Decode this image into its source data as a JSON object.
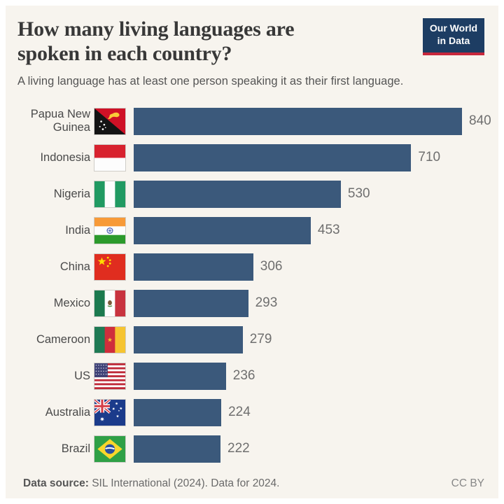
{
  "header": {
    "title_lines": [
      "How many living languages are",
      "spoken in each country?"
    ]
  },
  "logo": {
    "line1": "Our World",
    "line2": "in Data",
    "bg": "#1d3d63",
    "accent": "#c7273c"
  },
  "chart_data": {
    "type": "bar",
    "orientation": "horizontal",
    "title": "How many living languages are spoken in each country?",
    "subtitle": "A living language has at least one person speaking it as their first language.",
    "categories": [
      "Papua New Guinea",
      "Indonesia",
      "Nigeria",
      "India",
      "China",
      "Mexico",
      "Cameroon",
      "US",
      "Australia",
      "Brazil"
    ],
    "values": [
      840,
      710,
      530,
      453,
      306,
      293,
      279,
      236,
      224,
      222
    ],
    "xlim": [
      0,
      840
    ],
    "bar_color": "#3b597b",
    "grid": "off",
    "legend": "none",
    "value_labels": "end-of-bar",
    "flag_icons": [
      "papua-new-guinea-flag-icon",
      "indonesia-flag-icon",
      "nigeria-flag-icon",
      "india-flag-icon",
      "china-flag-icon",
      "mexico-flag-icon",
      "cameroon-flag-icon",
      "us-flag-icon",
      "australia-flag-icon",
      "brazil-flag-icon"
    ]
  },
  "footer": {
    "source_label": "Data source:",
    "source_text": "SIL International (2024). Data for 2024.",
    "license": "CC BY"
  },
  "colors": {
    "background": "#f7f4ee"
  }
}
